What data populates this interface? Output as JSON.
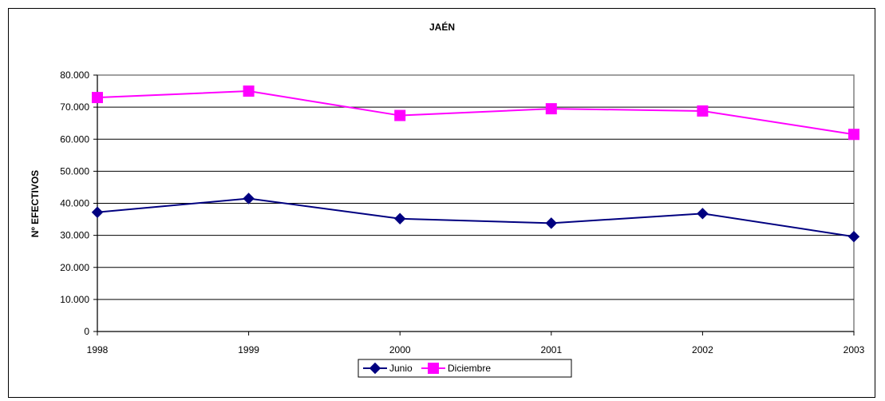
{
  "chart_data": {
    "type": "line",
    "title": "JAÉN",
    "xlabel": "",
    "ylabel": "Nº EFECTIVOS",
    "categories": [
      "1998",
      "1999",
      "2000",
      "2001",
      "2002",
      "2003"
    ],
    "ylim": [
      0,
      80000
    ],
    "yticks": [
      0,
      10000,
      20000,
      30000,
      40000,
      50000,
      60000,
      70000,
      80000
    ],
    "ytick_labels": [
      "0",
      "10.000",
      "20.000",
      "30.000",
      "40.000",
      "50.000",
      "60.000",
      "70.000",
      "80.000"
    ],
    "grid": true,
    "legend_position": "bottom",
    "series": [
      {
        "name": "Junio",
        "values": [
          37200,
          41500,
          35200,
          33800,
          36800,
          29600
        ],
        "color": "#000080",
        "marker": "diamond"
      },
      {
        "name": "Diciembre",
        "values": [
          73000,
          75000,
          67400,
          69500,
          68800,
          61500
        ],
        "color": "#ff00ff",
        "marker": "square"
      }
    ]
  }
}
